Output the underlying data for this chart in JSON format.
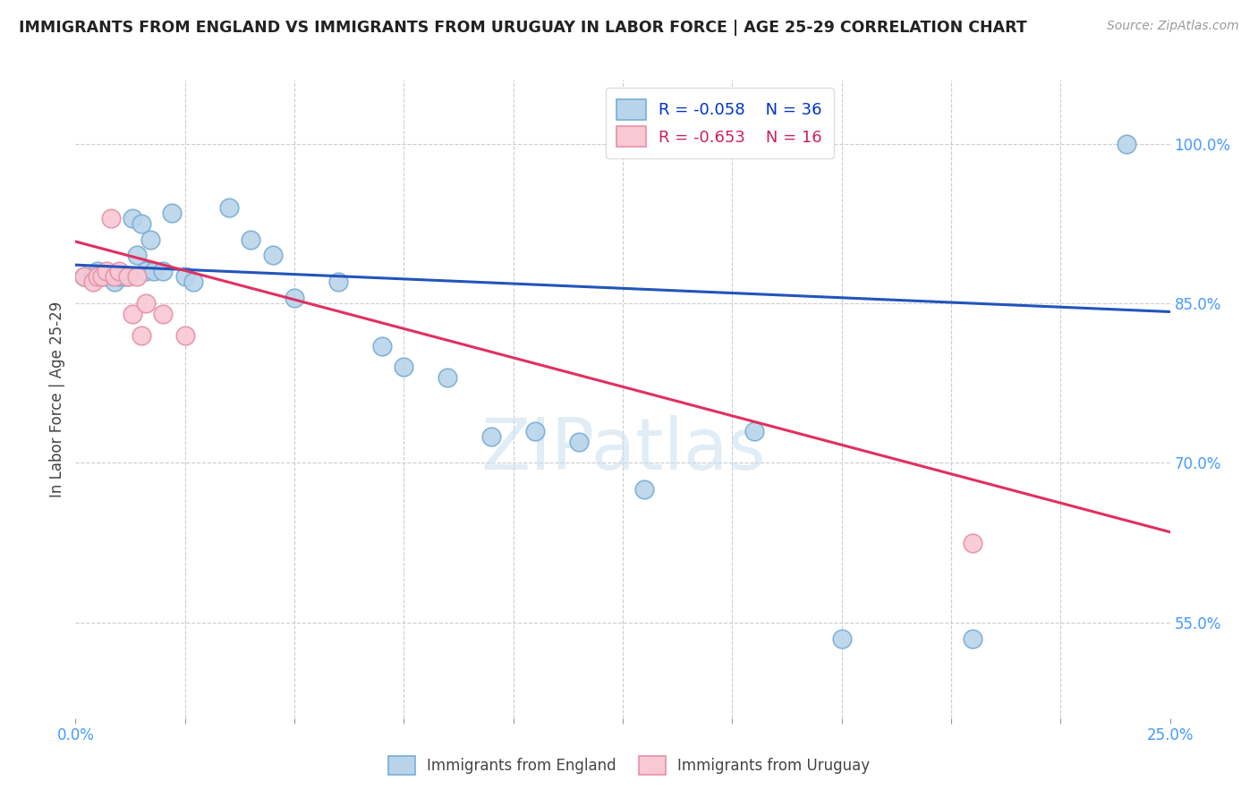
{
  "title": "IMMIGRANTS FROM ENGLAND VS IMMIGRANTS FROM URUGUAY IN LABOR FORCE | AGE 25-29 CORRELATION CHART",
  "source": "Source: ZipAtlas.com",
  "ylabel": "In Labor Force | Age 25-29",
  "xlim": [
    0.0,
    0.25
  ],
  "ylim": [
    0.46,
    1.06
  ],
  "xticks": [
    0.0,
    0.025,
    0.05,
    0.075,
    0.1,
    0.125,
    0.15,
    0.175,
    0.2,
    0.225,
    0.25
  ],
  "xtick_labels_show": {
    "0.0": "0.0%",
    "0.25": "25.0%"
  },
  "ytick_labels_right": [
    "100.0%",
    "85.0%",
    "70.0%",
    "55.0%"
  ],
  "ytick_vals_right": [
    1.0,
    0.85,
    0.7,
    0.55
  ],
  "legend_r_england": "-0.058",
  "legend_n_england": "36",
  "legend_r_uruguay": "-0.653",
  "legend_n_uruguay": "16",
  "england_color": "#b8d4ea",
  "england_edge": "#7aadd4",
  "uruguay_color": "#f8c8d4",
  "uruguay_edge": "#e890a8",
  "england_line_color": "#2255bb",
  "uruguay_line_color": "#e03060",
  "watermark": "ZIPatlas",
  "england_x": [
    0.002,
    0.004,
    0.005,
    0.006,
    0.007,
    0.008,
    0.009,
    0.01,
    0.011,
    0.012,
    0.013,
    0.014,
    0.015,
    0.016,
    0.017,
    0.018,
    0.02,
    0.022,
    0.025,
    0.027,
    0.035,
    0.04,
    0.045,
    0.05,
    0.06,
    0.07,
    0.075,
    0.085,
    0.095,
    0.105,
    0.115,
    0.13,
    0.155,
    0.175,
    0.205,
    0.24
  ],
  "england_y": [
    0.875,
    0.875,
    0.88,
    0.875,
    0.875,
    0.875,
    0.87,
    0.875,
    0.875,
    0.875,
    0.93,
    0.895,
    0.925,
    0.88,
    0.91,
    0.88,
    0.88,
    0.935,
    0.875,
    0.87,
    0.94,
    0.91,
    0.895,
    0.855,
    0.87,
    0.81,
    0.79,
    0.78,
    0.725,
    0.73,
    0.72,
    0.675,
    0.73,
    0.535,
    0.535,
    1.0
  ],
  "uruguay_x": [
    0.002,
    0.004,
    0.005,
    0.006,
    0.007,
    0.008,
    0.009,
    0.01,
    0.012,
    0.013,
    0.014,
    0.015,
    0.016,
    0.02,
    0.025,
    0.205
  ],
  "uruguay_y": [
    0.875,
    0.87,
    0.875,
    0.875,
    0.88,
    0.93,
    0.875,
    0.88,
    0.875,
    0.84,
    0.875,
    0.82,
    0.85,
    0.84,
    0.82,
    0.625
  ],
  "england_trendline_x": [
    0.0,
    0.25
  ],
  "england_trendline_y": [
    0.886,
    0.842
  ],
  "uruguay_trendline_x": [
    0.0,
    0.25
  ],
  "uruguay_trendline_y": [
    0.908,
    0.635
  ],
  "gridline_color": "#cccccc",
  "bg_color": "#ffffff"
}
